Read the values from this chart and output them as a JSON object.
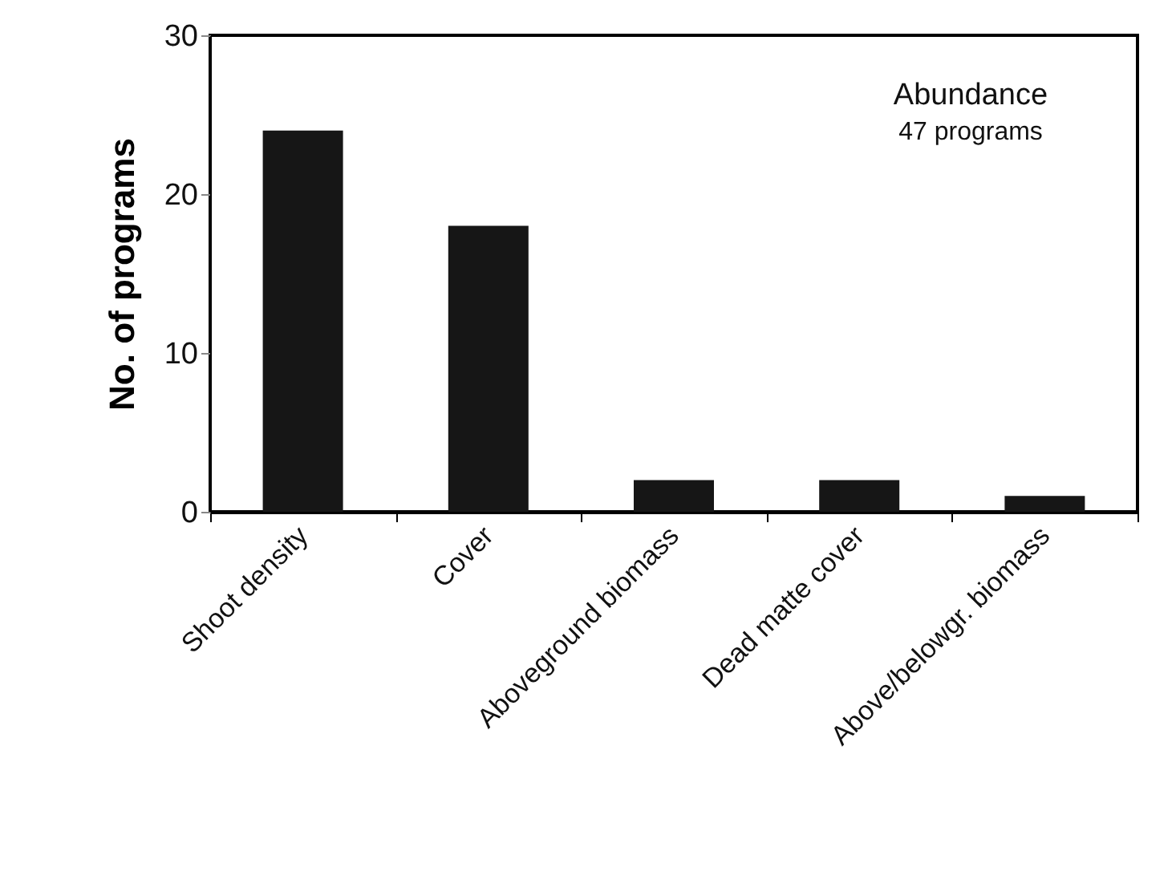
{
  "chart_data": {
    "type": "bar",
    "ylabel": "No. of programs",
    "categories": [
      "Shoot density",
      "Cover",
      "Aboveground biomass",
      "Dead matte cover",
      "Above/belowgr. biomass"
    ],
    "values": [
      24,
      18,
      2,
      2,
      1
    ],
    "color": "#161616",
    "ylim": [
      0,
      30
    ],
    "yticks": [
      0,
      10,
      20,
      30
    ],
    "grid": false,
    "annotations": [
      "Abundance",
      "47 programs"
    ]
  }
}
